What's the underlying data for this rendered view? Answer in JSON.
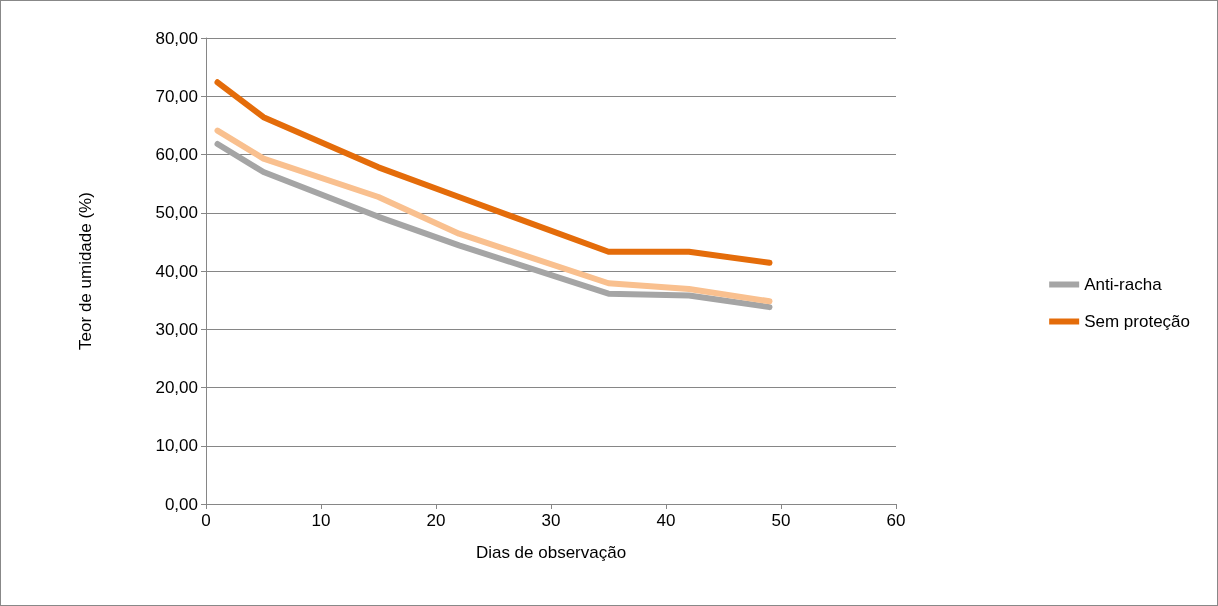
{
  "chart_data": {
    "type": "line",
    "xlabel": "Dias de observação",
    "ylabel": "Teor de umidade (%)",
    "x": [
      1,
      5,
      15,
      22,
      35,
      42,
      49
    ],
    "series": [
      {
        "name": "Anti-racha",
        "color": "#a5a5a5",
        "values": [
          61.8,
          57.0,
          49.3,
          44.4,
          36.1,
          35.8,
          33.8
        ]
      },
      {
        "color": "#f9c08f",
        "values": [
          64.1,
          59.3,
          52.7,
          46.4,
          37.9,
          36.9,
          34.8
        ]
      },
      {
        "name": "Sem proteção",
        "color": "#e46c0a",
        "values": [
          72.4,
          66.4,
          57.8,
          52.7,
          43.3,
          43.3,
          41.4
        ]
      }
    ],
    "xlim": [
      0,
      60
    ],
    "xticks": [
      0,
      10,
      20,
      30,
      40,
      50,
      60
    ],
    "ylim": [
      0,
      80
    ],
    "yticks": [
      {
        "value": 0,
        "label": "0,00"
      },
      {
        "value": 10,
        "label": "10,00"
      },
      {
        "value": 20,
        "label": "20,00"
      },
      {
        "value": 30,
        "label": "30,00"
      },
      {
        "value": 40,
        "label": "40,00"
      },
      {
        "value": 50,
        "label": "50,00"
      },
      {
        "value": 60,
        "label": "60,00"
      },
      {
        "value": 70,
        "label": "70,00"
      },
      {
        "value": 80,
        "label": "80,00"
      }
    ],
    "grid": "y",
    "legend": "right",
    "marker": "none",
    "line_style": "solid"
  }
}
